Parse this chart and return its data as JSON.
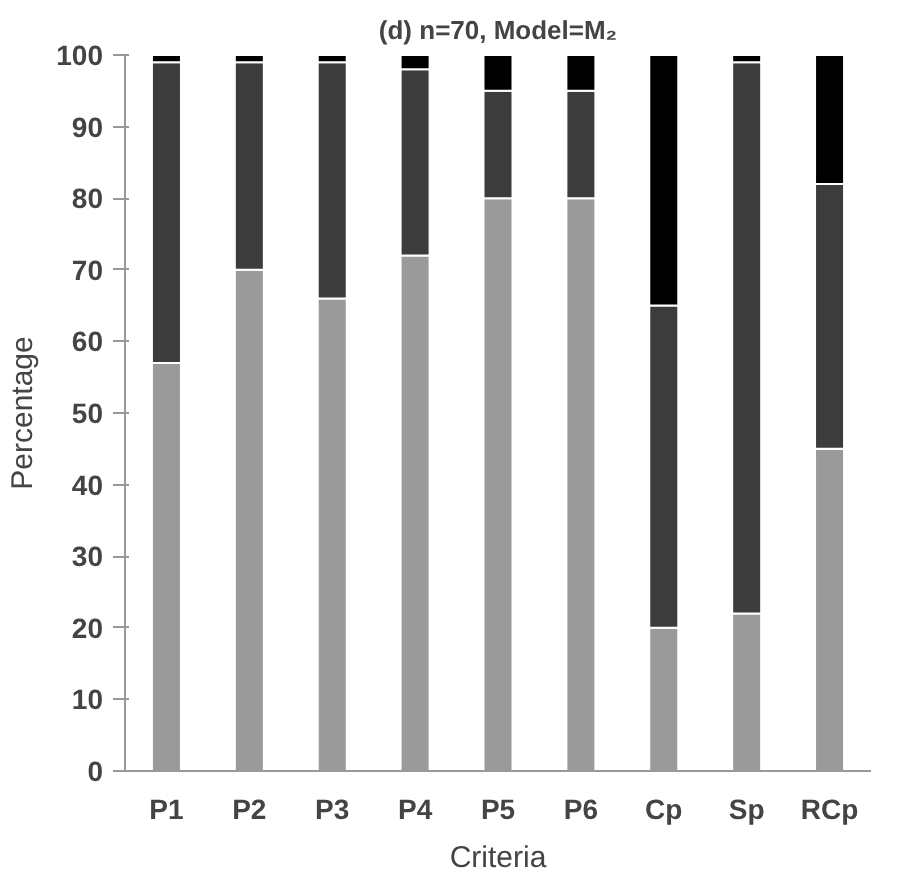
{
  "chart_data": {
    "type": "bar",
    "stacked": true,
    "title": "(d) n=70, Model=M₂",
    "xlabel": "Criteria",
    "ylabel": "Percentage",
    "categories": [
      "P1",
      "P2",
      "P3",
      "P4",
      "P5",
      "P6",
      "Cp",
      "Sp",
      "RCp"
    ],
    "series": [
      {
        "color": "#9a9a9a",
        "values": [
          57,
          70,
          66,
          72,
          80,
          80,
          20,
          22,
          45
        ]
      },
      {
        "color": "#3c3c3c",
        "values": [
          42,
          29,
          33,
          26,
          15,
          15,
          45,
          77,
          37
        ]
      },
      {
        "color": "#000000",
        "values": [
          1,
          1,
          1,
          2,
          5,
          5,
          35,
          1,
          18
        ]
      }
    ],
    "ylim": [
      0,
      100
    ],
    "yticks": [
      0,
      10,
      20,
      30,
      40,
      50,
      60,
      70,
      80,
      90,
      100
    ],
    "grid": false
  }
}
